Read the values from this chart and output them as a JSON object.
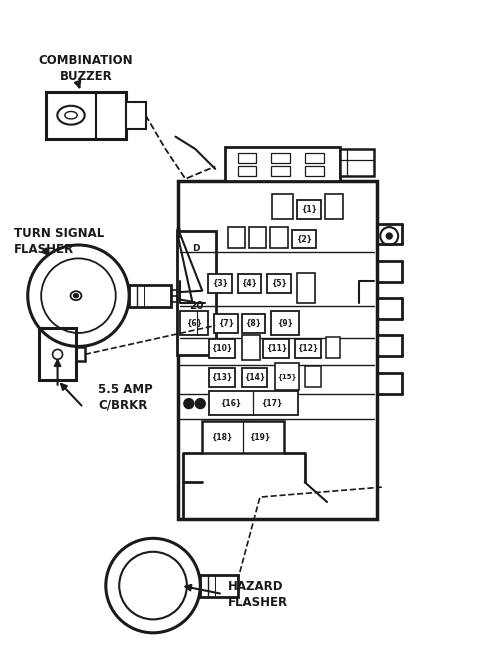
{
  "bg_color": "#ffffff",
  "line_color": "#1a1a1a",
  "figsize": [
    5.0,
    6.63
  ],
  "dpi": 100,
  "labels": {
    "combination_buzzer": "COMBINATION\nBUZZER",
    "turn_signal_flasher": "TURN SIGNAL\nFLASHER",
    "amp_cbrkr": "5.5 AMP\nC/BRKR",
    "hazard_flasher": "HAZARD\nFLASHER"
  },
  "slot_20": "20"
}
